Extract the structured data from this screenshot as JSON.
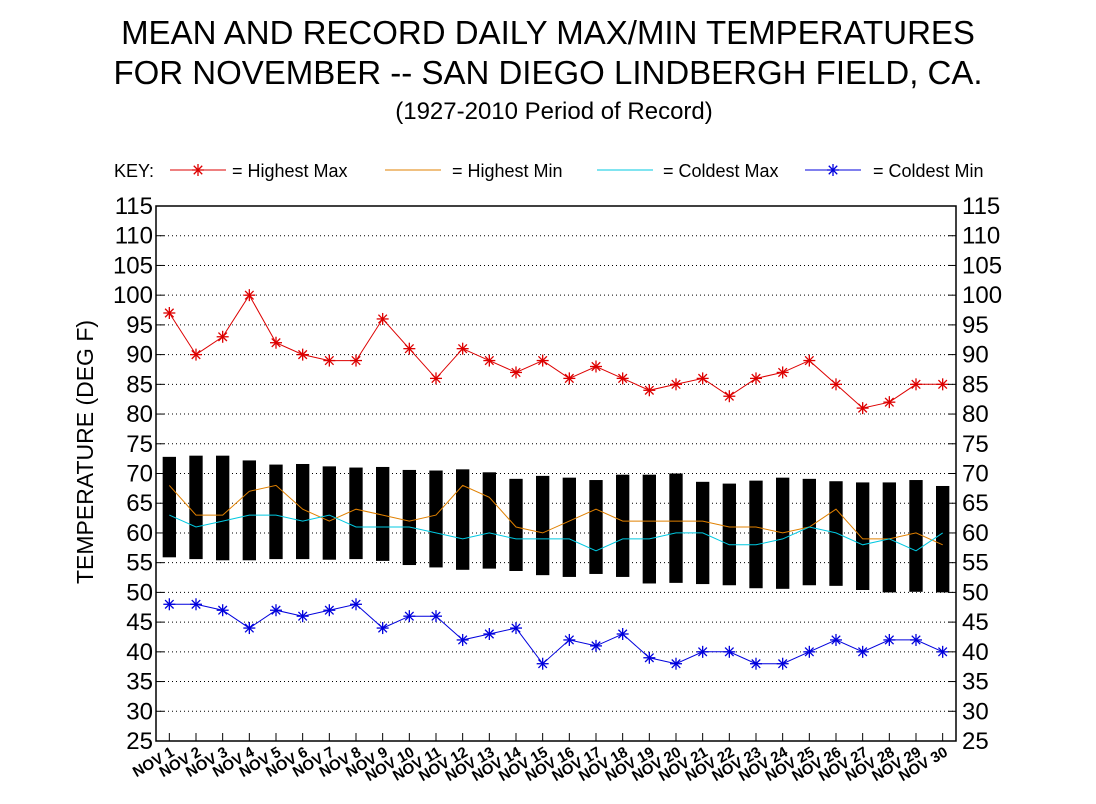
{
  "chart_data": {
    "type": "line",
    "title_line1": "MEAN AND RECORD DAILY MAX/MIN TEMPERATURES",
    "title_line2": "FOR NOVEMBER -- SAN DIEGO LINDBERGH FIELD, CA.",
    "subtitle": "(1927-2010 Period of Record)",
    "ylabel": "TEMPERATURE (DEG F)",
    "ylim": [
      25,
      115
    ],
    "yticks": [
      25,
      30,
      35,
      40,
      45,
      50,
      55,
      60,
      65,
      70,
      75,
      80,
      85,
      90,
      95,
      100,
      105,
      110,
      115
    ],
    "grid": true,
    "legend_position": "top",
    "key": {
      "prefix": "KEY:",
      "highest_max": "= Highest Max",
      "highest_min": "= Highest Min",
      "coldest_max": "= Coldest Max",
      "coldest_min": "= Coldest Min"
    },
    "categories": [
      "NOV 1",
      "NOV 2",
      "NOV 3",
      "NOV 4",
      "NOV 5",
      "NOV 6",
      "NOV 7",
      "NOV 8",
      "NOV 9",
      "NOV 10",
      "NOV 11",
      "NOV 12",
      "NOV 13",
      "NOV 14",
      "NOV 15",
      "NOV 16",
      "NOV 17",
      "NOV 18",
      "NOV 19",
      "NOV 20",
      "NOV 21",
      "NOV 22",
      "NOV 23",
      "NOV 24",
      "NOV 25",
      "NOV 26",
      "NOV 27",
      "NOV 28",
      "NOV 29",
      "NOV 30"
    ],
    "mean_bars": {
      "mean_max": [
        72.8,
        73.0,
        73.0,
        72.2,
        71.5,
        71.6,
        71.2,
        71.0,
        71.1,
        70.6,
        70.5,
        70.7,
        70.2,
        69.1,
        69.6,
        69.3,
        68.9,
        69.8,
        69.8,
        70.0,
        68.6,
        68.3,
        68.8,
        69.3,
        69.1,
        68.7,
        68.5,
        68.5,
        68.9,
        67.9
      ],
      "mean_min": [
        55.9,
        55.6,
        55.4,
        55.4,
        55.6,
        55.6,
        55.5,
        55.6,
        55.3,
        54.6,
        54.2,
        53.8,
        54.0,
        53.6,
        52.9,
        52.6,
        53.1,
        52.6,
        51.5,
        51.6,
        51.4,
        51.2,
        50.7,
        50.6,
        51.2,
        51.1,
        50.4,
        50.0,
        50.1,
        50.0
      ],
      "color": "#000000"
    },
    "series": [
      {
        "name": "Highest Max",
        "color": "#dd0000",
        "marker": "asterisk",
        "values": [
          97,
          90,
          93,
          100,
          92,
          90,
          89,
          89,
          96,
          91,
          86,
          91,
          89,
          87,
          89,
          86,
          88,
          86,
          84,
          85,
          86,
          83,
          86,
          87,
          89,
          85,
          81,
          82,
          85,
          85
        ]
      },
      {
        "name": "Highest Min",
        "color": "#e08000",
        "marker": "none",
        "values": [
          68,
          63,
          63,
          67,
          68,
          64,
          62,
          64,
          63,
          62,
          63,
          68,
          66,
          61,
          60,
          62,
          64,
          62,
          62,
          62,
          62,
          61,
          61,
          60,
          61,
          64,
          59,
          59,
          60,
          58
        ]
      },
      {
        "name": "Coldest Max",
        "color": "#00c8e0",
        "marker": "none",
        "values": [
          63,
          61,
          62,
          63,
          63,
          62,
          63,
          61,
          61,
          61,
          60,
          59,
          60,
          59,
          59,
          59,
          57,
          59,
          59,
          60,
          60,
          58,
          58,
          59,
          61,
          60,
          58,
          59,
          57,
          60
        ]
      },
      {
        "name": "Coldest Min",
        "color": "#0000dd",
        "marker": "asterisk",
        "values": [
          48,
          48,
          47,
          44,
          47,
          46,
          47,
          48,
          44,
          46,
          46,
          42,
          43,
          44,
          38,
          42,
          41,
          43,
          39,
          38,
          40,
          40,
          38,
          38,
          40,
          42,
          40,
          42,
          42,
          40
        ]
      }
    ]
  }
}
